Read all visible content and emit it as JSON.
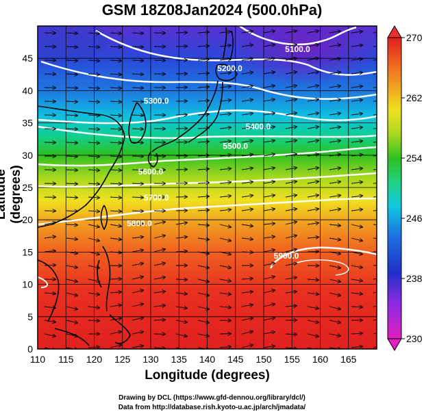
{
  "title": "GSM 18Z08Jan2024 (500.0hPa)",
  "xlabel": "Longitude (degrees)",
  "ylabel": "Latitude  (degrees)",
  "credits": [
    "Drawing by DCL (https://www.gfd-dennou.org/library/dcl/)",
    "Data from http://database.rish.kyoto-u.ac.jp/arch/jmadata/"
  ],
  "map": {
    "lon_range": [
      110,
      170
    ],
    "lat_range": [
      0,
      50
    ],
    "x_ticks": [
      110,
      115,
      120,
      125,
      130,
      135,
      140,
      145,
      150,
      155,
      160,
      165
    ],
    "y_ticks": [
      0,
      5,
      10,
      15,
      20,
      25,
      30,
      35,
      40,
      45
    ],
    "grid": true
  },
  "colorbar": {
    "min": 230,
    "max": 270,
    "tick_labels": [
      "270",
      "262",
      "254",
      "246",
      "238",
      "230"
    ],
    "palette": [
      "#e020c0",
      "#8a2be2",
      "#2030c8",
      "#1e70e0",
      "#10c8e0",
      "#20d080",
      "#30c020",
      "#a8d820",
      "#f0e020",
      "#f0a020",
      "#f06020",
      "#e02020",
      "#e83030"
    ]
  },
  "contours": [
    {
      "label": "5100.0",
      "lon": 156,
      "lat": 46
    },
    {
      "label": "5200.0",
      "lon": 144,
      "lat": 43
    },
    {
      "label": "5300.0",
      "lon": 131,
      "lat": 38
    },
    {
      "label": "5400.0",
      "lon": 149,
      "lat": 34
    },
    {
      "label": "5500.0",
      "lon": 145,
      "lat": 31
    },
    {
      "label": "5600.0",
      "lon": 130,
      "lat": 27
    },
    {
      "label": "5700.0",
      "lon": 131,
      "lat": 23
    },
    {
      "label": "5800.0",
      "lon": 128,
      "lat": 19
    },
    {
      "label": "5900.0",
      "lon": 154,
      "lat": 14
    }
  ],
  "coast_features": [
    "honshu",
    "kyushu",
    "korea",
    "taiwan",
    "luzon",
    "china-coast",
    "sakhalin"
  ]
}
